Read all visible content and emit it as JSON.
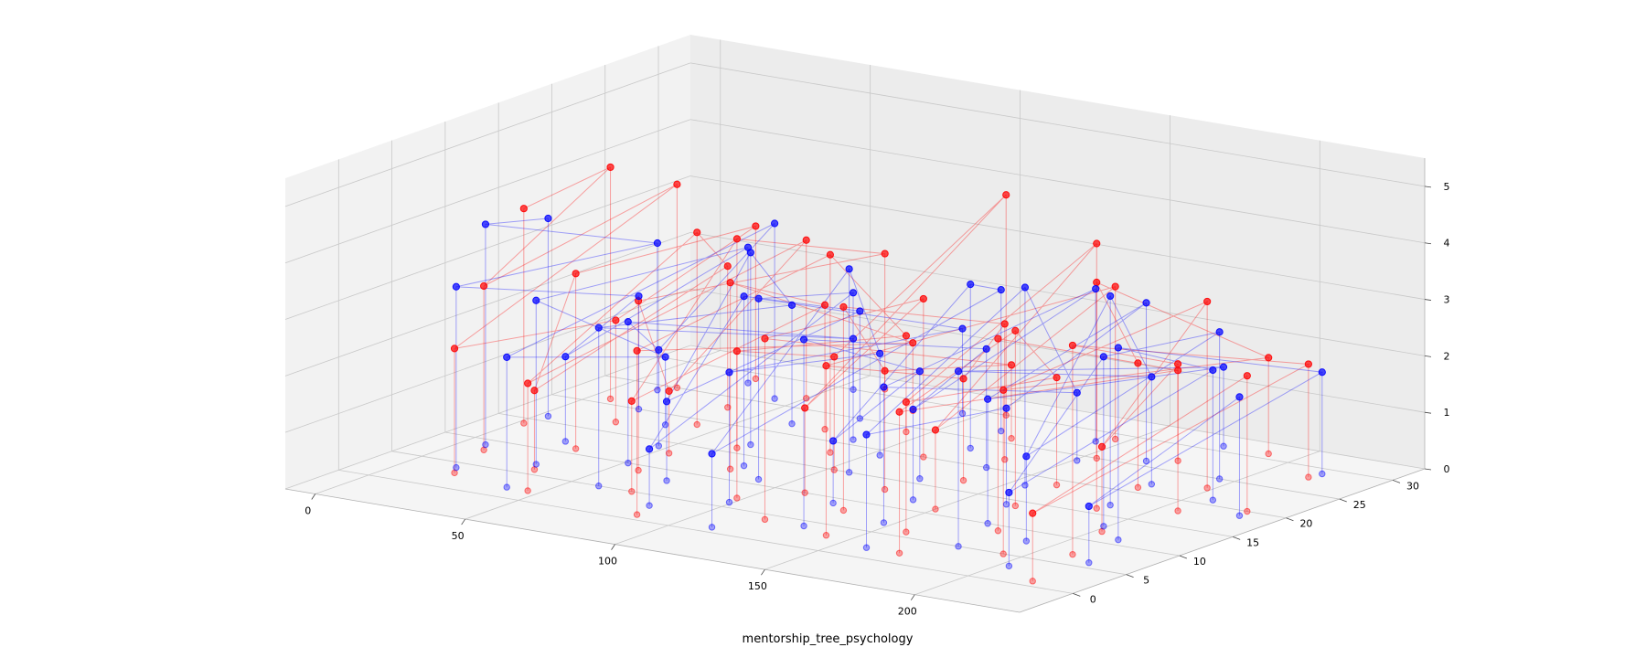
{
  "chart_data": {
    "type": "scatter",
    "projection": "3d",
    "title": "",
    "xlabel": "mentorship_tree_psychology",
    "ylabel": "",
    "zlabel": "",
    "xlim": [
      -10,
      235
    ],
    "ylim": [
      -5,
      33
    ],
    "zlim": [
      0,
      5.5
    ],
    "xticks": [
      "0",
      "50",
      "100",
      "150",
      "200"
    ],
    "yticks": [
      "0",
      "5",
      "10",
      "15",
      "20",
      "25",
      "30"
    ],
    "zticks": [
      "0",
      "1",
      "2",
      "3",
      "4",
      "5"
    ],
    "grid": true,
    "legend": "none",
    "colors": {
      "series_red": "#ff0000",
      "series_blue": "#0000ff",
      "pane_left": "#f2f2f2",
      "pane_back": "#ececec",
      "pane_floor": "#f5f5f5",
      "grid": "#c8c8c8"
    },
    "series": [
      {
        "color": "#ff0000",
        "x": [
          2,
          6,
          10,
          14,
          18,
          22,
          26,
          30,
          34,
          38,
          42,
          46,
          50,
          54,
          58,
          62,
          66,
          70,
          74,
          78,
          82,
          86,
          90,
          94,
          98,
          102,
          106,
          110,
          114,
          118,
          122,
          126,
          130,
          134,
          138,
          142,
          146,
          150,
          154,
          158,
          162,
          166,
          170,
          174,
          178,
          182,
          186,
          190,
          194,
          198,
          202,
          206,
          210,
          214,
          218,
          222
        ],
        "y": [
          14,
          21,
          8,
          25,
          3,
          17,
          29,
          11,
          6,
          23,
          19,
          2,
          27,
          13,
          9,
          31,
          16,
          5,
          22,
          12,
          28,
          1,
          18,
          24,
          7,
          15,
          30,
          10,
          20,
          4,
          26,
          13,
          8,
          22,
          17,
          3,
          29,
          11,
          25,
          6,
          19,
          14,
          2,
          27,
          9,
          21,
          16,
          31,
          5,
          23,
          12,
          18,
          7,
          28,
          1,
          20
        ],
        "z": [
          3.8,
          4.1,
          2.9,
          3.6,
          2.2,
          1.8,
          2.7,
          3.1,
          1.4,
          2.5,
          3.4,
          1.9,
          2.8,
          1.1,
          3.0,
          2.4,
          3.7,
          1.6,
          2.2,
          3.3,
          1.2,
          2.9,
          3.5,
          1.7,
          2.6,
          2.0,
          3.9,
          1.5,
          2.8,
          3.2,
          1.3,
          2.1,
          3.6,
          2.4,
          1.8,
          3.0,
          2.7,
          1.4,
          3.8,
          2.3,
          1.9,
          3.1,
          2.5,
          1.6,
          3.4,
          2.2,
          4.0,
          1.7,
          2.9,
          3.3,
          1.5,
          2.6,
          3.7,
          2.0,
          1.2,
          2.4
        ]
      },
      {
        "color": "#0000ff",
        "x": [
          3,
          7,
          11,
          15,
          19,
          23,
          27,
          31,
          35,
          39,
          43,
          47,
          51,
          55,
          59,
          63,
          67,
          71,
          75,
          79,
          83,
          87,
          91,
          95,
          99,
          103,
          107,
          111,
          115,
          119,
          123,
          127,
          131,
          135,
          139,
          143,
          147,
          151,
          155,
          159,
          163,
          167,
          171,
          175,
          179,
          183,
          187,
          191,
          195,
          199,
          203,
          207,
          211,
          215,
          219,
          223
        ],
        "y": [
          16,
          9,
          24,
          4,
          20,
          12,
          28,
          7,
          18,
          2,
          26,
          14,
          10,
          30,
          5,
          22,
          17,
          8,
          25,
          13,
          3,
          21,
          11,
          29,
          6,
          19,
          15,
          1,
          27,
          23,
          9,
          16,
          4,
          20,
          12,
          28,
          7,
          24,
          18,
          2,
          14,
          26,
          10,
          31,
          5,
          22,
          17,
          8,
          25,
          13,
          3,
          21,
          11,
          29,
          6,
          19
        ],
        "z": [
          3.5,
          3.9,
          2.6,
          3.2,
          2.0,
          1.5,
          2.4,
          2.9,
          1.2,
          2.3,
          3.1,
          1.7,
          2.5,
          0.9,
          2.8,
          2.1,
          3.4,
          1.4,
          1.9,
          3.0,
          1.0,
          2.6,
          3.2,
          1.5,
          2.3,
          1.8,
          3.6,
          1.3,
          2.5,
          2.9,
          1.1,
          1.9,
          3.3,
          2.1,
          1.6,
          2.7,
          2.4,
          1.2,
          3.5,
          2.0,
          1.7,
          2.8,
          2.2,
          1.4,
          3.1,
          1.9,
          3.7,
          1.5,
          2.6,
          3.0,
          1.3,
          2.3,
          3.4,
          1.8,
          1.0,
          2.1
        ]
      }
    ]
  }
}
